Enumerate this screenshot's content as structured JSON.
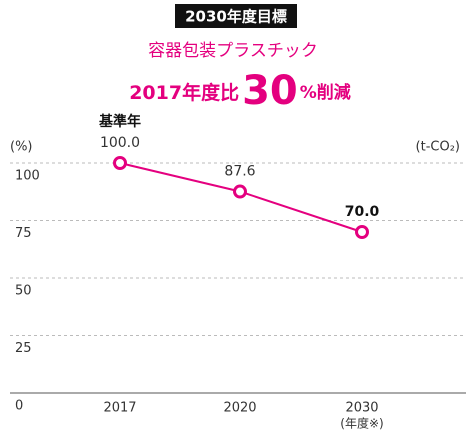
{
  "chart_data": {
    "type": "line",
    "badge": "2030年度目標",
    "title": "容器包装プラスチック",
    "headline": {
      "prefix": "2017年度比",
      "number": "30",
      "suffix": "%削減"
    },
    "y_unit_left": "(%)",
    "y_unit_right": "(t-CO₂)",
    "categories": [
      "2017",
      "2020",
      "2030"
    ],
    "x_note": "(年度※)",
    "base_note": "基準年",
    "series": [
      {
        "name": "容器包装プラスチック",
        "color": "#e4007f",
        "values": [
          100,
          87.6,
          70
        ],
        "value_labels": [
          "100.0",
          "87.6",
          "70.0"
        ]
      }
    ],
    "ylim": [
      0,
      110
    ],
    "yticks": [
      0,
      25,
      50,
      75,
      100
    ],
    "grid": true
  }
}
